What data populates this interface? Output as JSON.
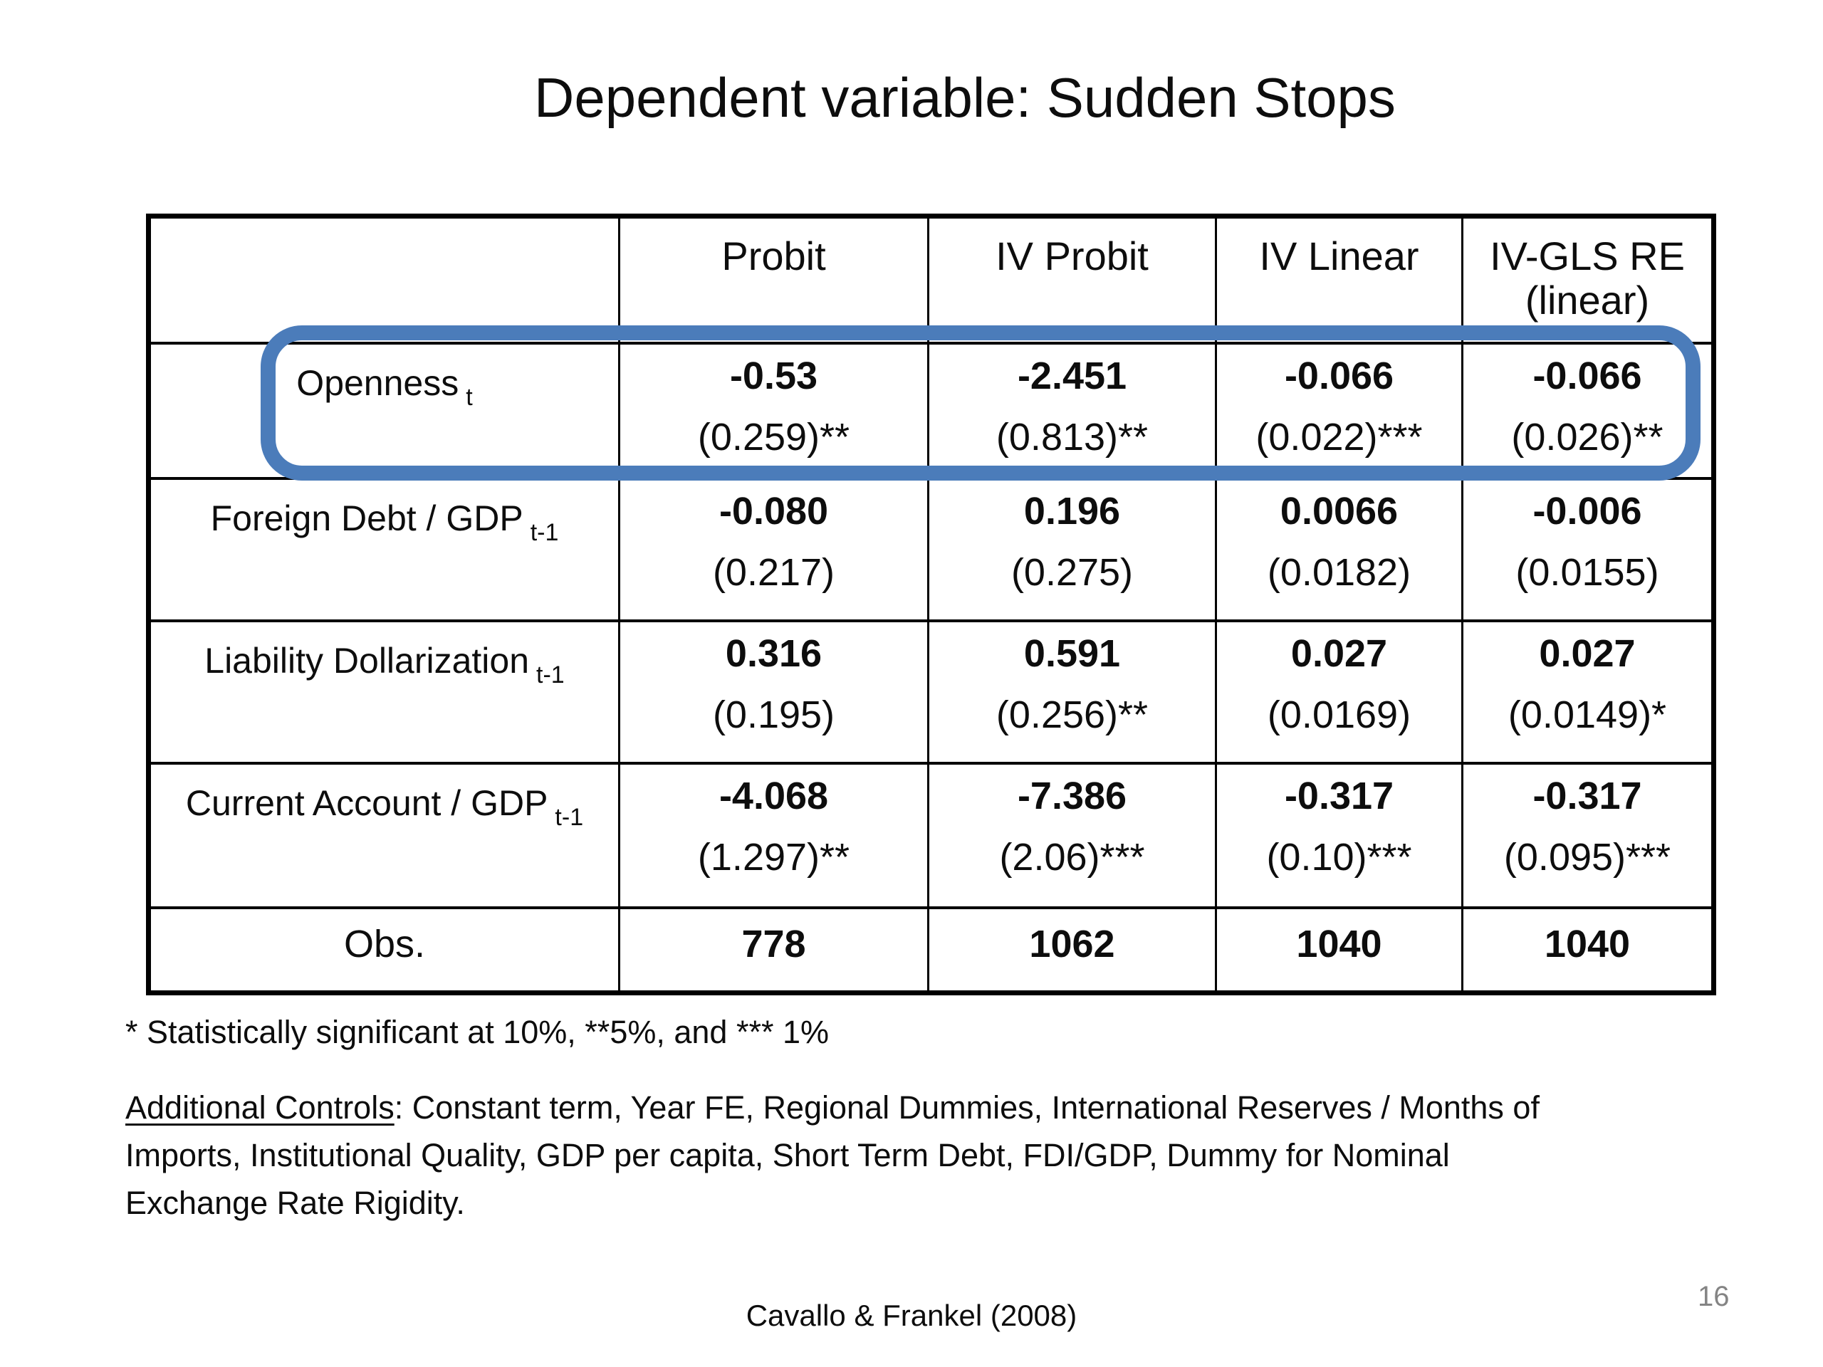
{
  "slide": {
    "title": "Dependent variable: Sudden Stops",
    "page_number": "16",
    "citation": "Cavallo & Frankel (2008)"
  },
  "table": {
    "headers": {
      "probit": "Probit",
      "iv_probit": "IV Probit",
      "iv_linear": "IV Linear",
      "iv_gls_line1": "IV-GLS RE",
      "iv_gls_line2": "(linear)"
    },
    "rows": [
      {
        "label": "Openness",
        "subscript": "t",
        "cells": [
          {
            "coef": "-0.53",
            "se": "(0.259)**"
          },
          {
            "coef": "-2.451",
            "se": "(0.813)**"
          },
          {
            "coef": "-0.066",
            "se": "(0.022)***"
          },
          {
            "coef": "-0.066",
            "se": "(0.026)**"
          }
        ]
      },
      {
        "label": "Foreign Debt / GDP",
        "subscript": "t-1",
        "cells": [
          {
            "coef": "-0.080",
            "se": "(0.217)"
          },
          {
            "coef": "0.196",
            "se": "(0.275)"
          },
          {
            "coef": "0.0066",
            "se": "(0.0182)"
          },
          {
            "coef": "-0.006",
            "se": "(0.0155)"
          }
        ]
      },
      {
        "label": "Liability Dollarization",
        "subscript": "t-1",
        "cells": [
          {
            "coef": "0.316",
            "se": "(0.195)"
          },
          {
            "coef": "0.591",
            "se": "(0.256)**"
          },
          {
            "coef": "0.027",
            "se": "(0.0169)"
          },
          {
            "coef": "0.027",
            "se": "(0.0149)*"
          }
        ]
      },
      {
        "label": "Current Account / GDP",
        "subscript": "t-1",
        "cells": [
          {
            "coef": "-4.068",
            "se": "(1.297)**"
          },
          {
            "coef": "-7.386",
            "se": "(2.06)***"
          },
          {
            "coef": "-0.317",
            "se": "(0.10)***"
          },
          {
            "coef": "-0.317",
            "se": "(0.095)***"
          }
        ]
      }
    ],
    "obs": {
      "label": "Obs.",
      "values": [
        "778",
        "1062",
        "1040",
        "1040"
      ]
    }
  },
  "notes": {
    "significance": "* Statistically significant at 10%, **5%, and *** 1%",
    "additional_controls_label": "Additional Controls",
    "additional_controls_rest": ": Constant term, Year FE, Regional Dummies, International Reserves / Months of",
    "additional_controls_line2": "Imports, Institutional Quality, GDP per capita, Short Term Debt, FDI/GDP, Dummy for Nominal",
    "additional_controls_line3": "Exchange Rate Rigidity."
  },
  "highlight": {
    "color": "#4b7cba"
  }
}
